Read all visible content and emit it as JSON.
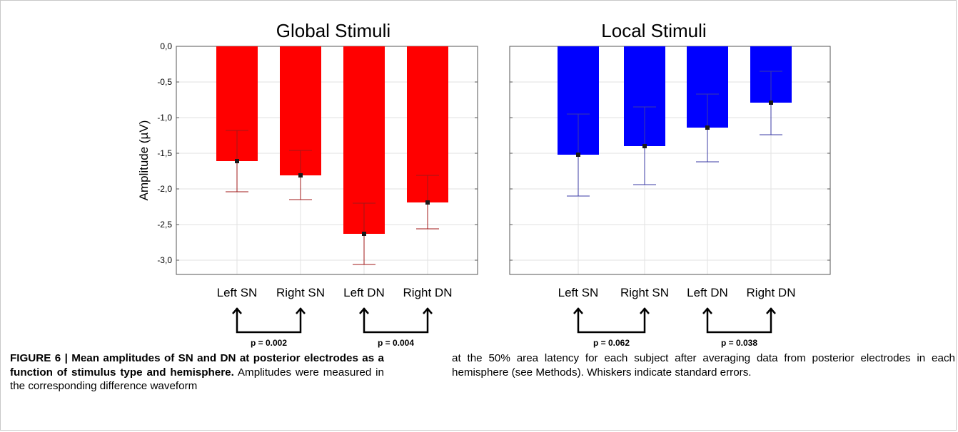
{
  "chart_data": [
    {
      "type": "bar",
      "title": "Global Stimuli",
      "ylabel": "Amplitude (µV)",
      "xlabel": "",
      "categories": [
        "Left SN",
        "Right SN",
        "Left DN",
        "Right DN"
      ],
      "values": [
        -1.61,
        -1.81,
        -2.63,
        -2.19
      ],
      "error_lower": [
        -2.04,
        -2.15,
        -3.06,
        -2.56
      ],
      "error_upper": [
        -1.18,
        -1.46,
        -2.2,
        -1.81
      ],
      "ylim": [
        -3.2,
        0.0
      ],
      "yticks": [
        0.0,
        -0.5,
        -1.0,
        -1.5,
        -2.0,
        -2.5,
        -3.0
      ],
      "ytick_labels": [
        "0,0",
        "-0,5",
        "-1,0",
        "-1,5",
        "-2,0",
        "-2,5",
        "-3,0"
      ],
      "grid": true,
      "bar_color": "#ff0000",
      "errorbar_color": "#a01818",
      "comparisons": [
        {
          "from": 0,
          "to": 1,
          "label": "p = 0.002"
        },
        {
          "from": 2,
          "to": 3,
          "label": "p = 0.004"
        }
      ]
    },
    {
      "type": "bar",
      "title": "Local Stimuli",
      "xlabel": "",
      "categories": [
        "Left SN",
        "Right SN",
        "Left DN",
        "Right DN"
      ],
      "values": [
        -1.52,
        -1.4,
        -1.14,
        -0.79
      ],
      "error_lower": [
        -2.1,
        -1.94,
        -1.62,
        -1.24
      ],
      "error_upper": [
        -0.95,
        -0.85,
        -0.67,
        -0.35
      ],
      "ylim": [
        -3.2,
        0.0
      ],
      "grid": true,
      "bar_color": "#0000ff",
      "errorbar_color": "#3b3ba6",
      "comparisons": [
        {
          "from": 0,
          "to": 1,
          "label": "p = 0.062"
        },
        {
          "from": 2,
          "to": 3,
          "label": "p = 0.038"
        }
      ]
    }
  ],
  "caption": {
    "figure_label": "FIGURE 6 | Mean amplitudes of SN and DN at posterior electrodes as a function of stimulus type and hemisphere.",
    "text_left": "Amplitudes were measured in the corresponding difference waveform",
    "text_right": "at the 50% area latency for each subject after averaging data from posterior electrodes in each hemisphere (see Methods). Whiskers indicate standard errors."
  }
}
